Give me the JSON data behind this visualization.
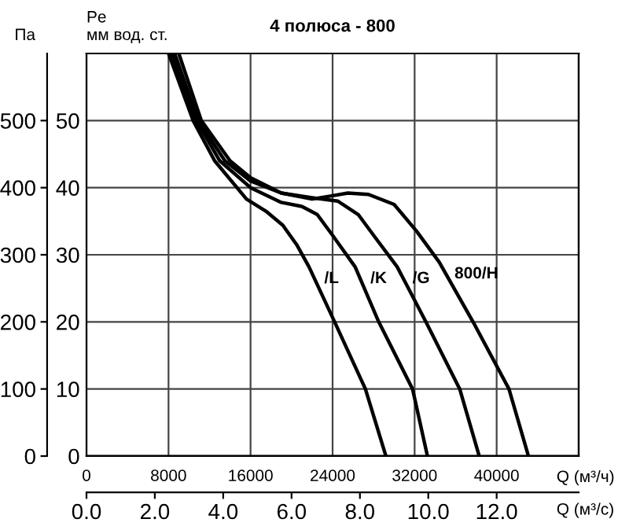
{
  "chart_data": {
    "type": "line",
    "title": "4 полюса - 800",
    "xlabel": "Q (м³/ч)",
    "x2label": "Q (м³/с)",
    "ylabel": "Па",
    "y2label": "Pe\nмм вод. ст.",
    "xlim": [
      0,
      48000
    ],
    "xticks": [
      0,
      8000,
      16000,
      24000,
      32000,
      40000
    ],
    "x2lim": [
      0,
      14.4
    ],
    "x2ticks": [
      {
        "value": 0,
        "label": "0.0"
      },
      {
        "value": 2,
        "label": "2.0"
      },
      {
        "value": 4,
        "label": "4.0"
      },
      {
        "value": 6,
        "label": "6.0"
      },
      {
        "value": 8,
        "label": "8.0"
      },
      {
        "value": 10,
        "label": "10.0"
      },
      {
        "value": 12,
        "label": "12.0"
      }
    ],
    "ylim": [
      0,
      600
    ],
    "yticks": [
      0,
      100,
      200,
      300,
      400,
      500
    ],
    "y2lim": [
      0,
      60
    ],
    "y2ticks": [
      0,
      10,
      20,
      30,
      40,
      50
    ],
    "grid": true,
    "series": [
      {
        "name": "/L",
        "color": "#000000",
        "x": [
          8000,
          10400,
          12500,
          15600,
          17500,
          19150,
          20500,
          21700,
          24200,
          27200,
          29200
        ],
        "values": [
          600,
          500,
          440,
          383,
          365,
          344,
          315,
          282,
          200,
          100,
          0
        ]
      },
      {
        "name": "/K",
        "color": "#000000",
        "x": [
          8300,
          10700,
          13000,
          16000,
          19000,
          21000,
          22500,
          24000,
          26200,
          28500,
          31800,
          33250
        ],
        "values": [
          600,
          500,
          440,
          400,
          378,
          372,
          360,
          329,
          282,
          200,
          100,
          0
        ]
      },
      {
        "name": "/G",
        "color": "#000000",
        "x": [
          8600,
          10900,
          13500,
          16000,
          19000,
          22000,
          24500,
          26500,
          28000,
          30300,
          33100,
          36400,
          38300
        ],
        "values": [
          600,
          500,
          440,
          410,
          392,
          385,
          380,
          360,
          329,
          282,
          200,
          100,
          0
        ]
      },
      {
        "name": "800/H",
        "color": "#000000",
        "x": [
          9000,
          11200,
          14000,
          16000,
          19000,
          22000,
          24000,
          25500,
          27500,
          30000,
          32200,
          34400,
          37700,
          41200,
          43100
        ],
        "values": [
          600,
          500,
          440,
          415,
          392,
          383,
          388,
          392,
          390,
          375,
          335,
          289,
          200,
          100,
          0
        ]
      }
    ]
  }
}
